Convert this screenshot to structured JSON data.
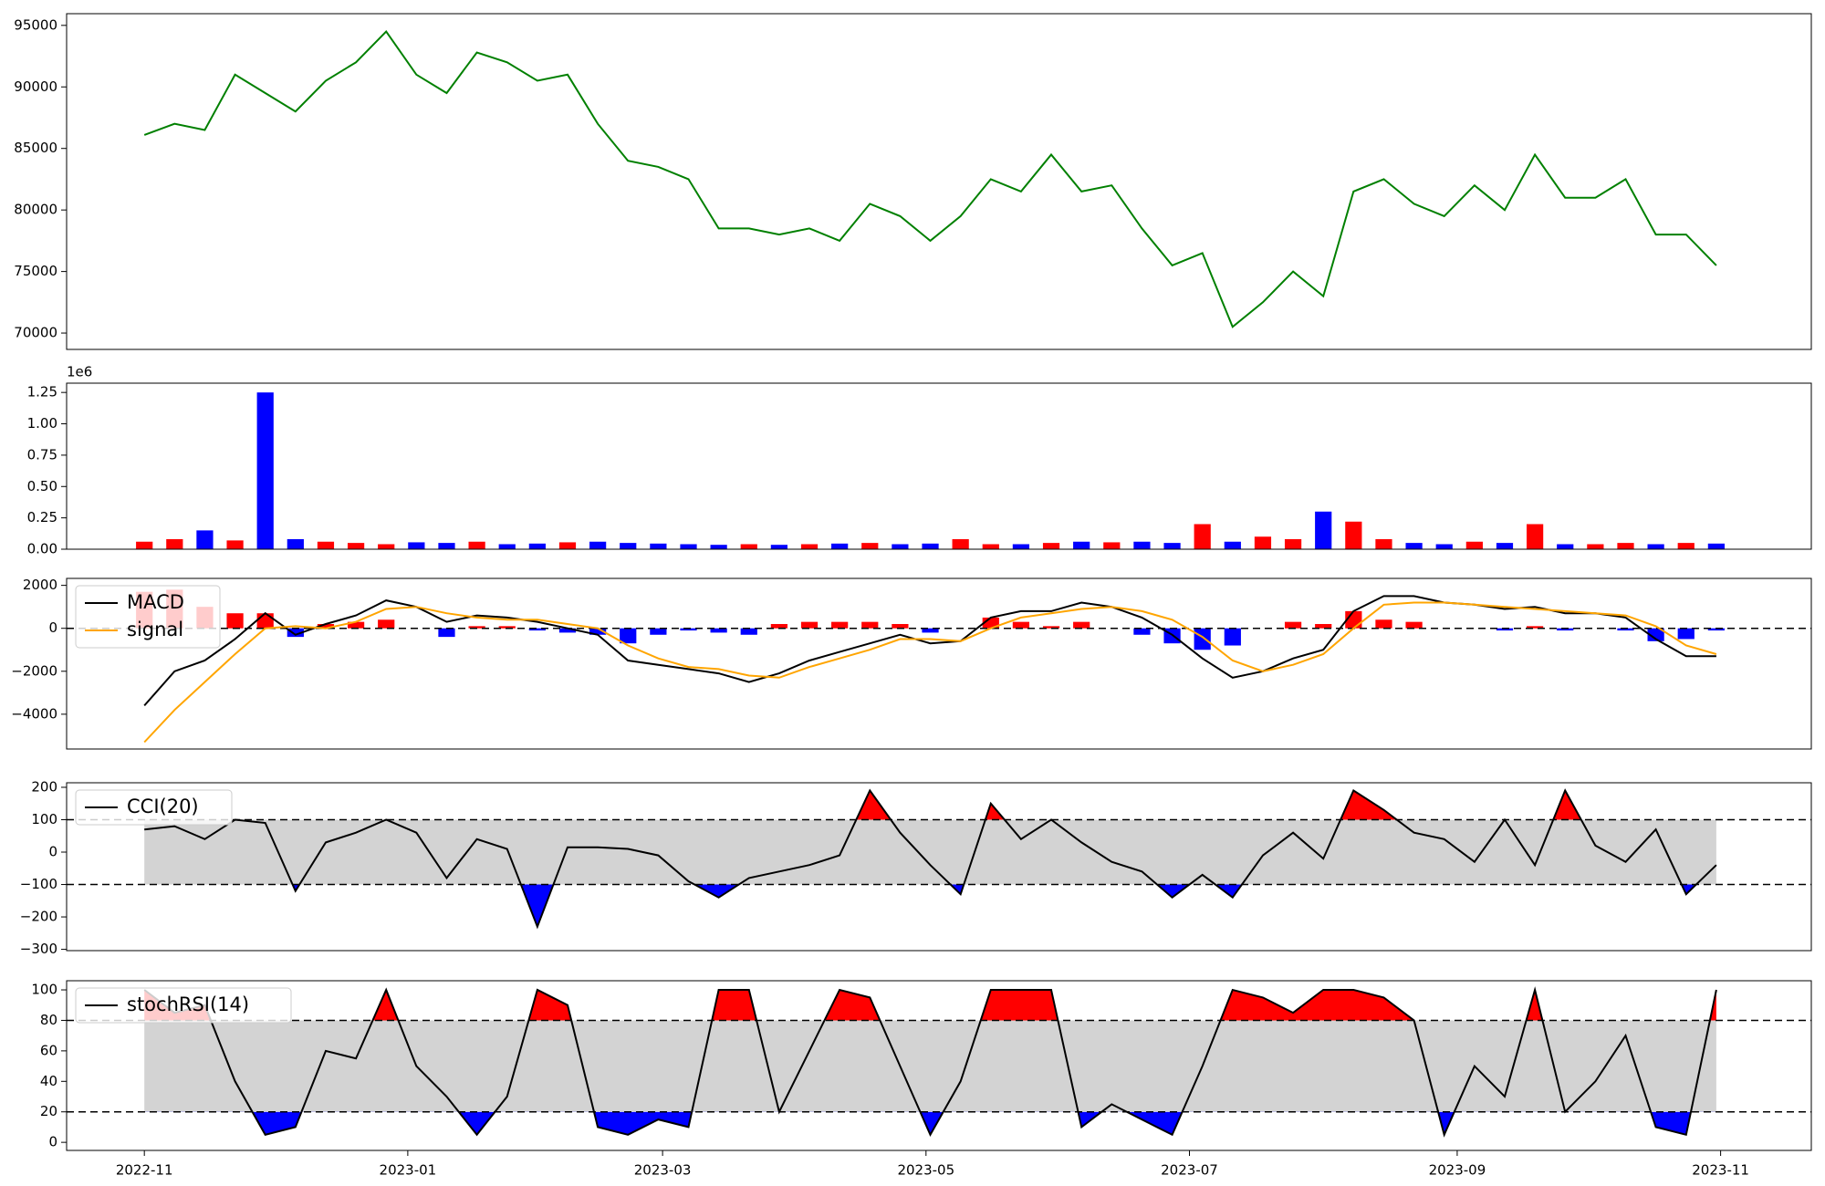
{
  "chart_data": [
    {
      "type": "line",
      "x": [
        "2022-11-01",
        "2022-11-08",
        "2022-11-15",
        "2022-11-22",
        "2022-11-29",
        "2022-12-06",
        "2022-12-13",
        "2022-12-20",
        "2022-12-27",
        "2023-01-03",
        "2023-01-10",
        "2023-01-17",
        "2023-01-24",
        "2023-01-31",
        "2023-02-07",
        "2023-02-14",
        "2023-02-21",
        "2023-02-28",
        "2023-03-07",
        "2023-03-14",
        "2023-03-21",
        "2023-03-28",
        "2023-04-04",
        "2023-04-11",
        "2023-04-18",
        "2023-04-25",
        "2023-05-02",
        "2023-05-09",
        "2023-05-16",
        "2023-05-23",
        "2023-05-30",
        "2023-06-06",
        "2023-06-13",
        "2023-06-20",
        "2023-06-27",
        "2023-07-04",
        "2023-07-11",
        "2023-07-18",
        "2023-07-25",
        "2023-08-01",
        "2023-08-08",
        "2023-08-15",
        "2023-08-22",
        "2023-08-29",
        "2023-09-05",
        "2023-09-12",
        "2023-09-19",
        "2023-09-26",
        "2023-10-03",
        "2023-10-10",
        "2023-10-17",
        "2023-10-24",
        "2023-10-31"
      ],
      "xlim": [
        "2022-10-14",
        "2023-11-22"
      ],
      "xticks": [
        {
          "value": "2022-11-01",
          "label": "2022-11"
        },
        {
          "value": "2023-01-01",
          "label": "2023-01"
        },
        {
          "value": "2023-03-01",
          "label": "2023-03"
        },
        {
          "value": "2023-05-01",
          "label": "2023-05"
        },
        {
          "value": "2023-07-01",
          "label": "2023-07"
        },
        {
          "value": "2023-09-01",
          "label": "2023-09"
        },
        {
          "value": "2023-11-01",
          "label": "2023-11"
        }
      ],
      "color": "green",
      "values": [
        86100,
        87000,
        86500,
        91000,
        89500,
        88000,
        90500,
        92000,
        94500,
        91000,
        89500,
        92800,
        92000,
        90500,
        91000,
        87000,
        84000,
        83500,
        82500,
        78500,
        78500,
        78000,
        78500,
        77500,
        80500,
        79500,
        77500,
        79500,
        82500,
        81500,
        84500,
        81500,
        82000,
        78500,
        75500,
        76500,
        70500,
        72500,
        75000,
        73000,
        81500,
        82500,
        80500,
        79500,
        82000,
        80000,
        84500,
        81000,
        81000,
        82500,
        78000,
        78000,
        75500
      ],
      "ylim": [
        68670,
        95950
      ],
      "yticks": [
        70000,
        75000,
        80000,
        85000,
        90000,
        95000
      ]
    },
    {
      "type": "bar",
      "values": [
        60000,
        80000,
        150000,
        70000,
        1250000,
        80000,
        60000,
        50000,
        40000,
        55000,
        50000,
        60000,
        40000,
        45000,
        55000,
        60000,
        50000,
        45000,
        40000,
        35000,
        40000,
        35000,
        40000,
        45000,
        50000,
        40000,
        45000,
        80000,
        40000,
        40000,
        50000,
        60000,
        55000,
        60000,
        50000,
        200000,
        60000,
        100000,
        80000,
        300000,
        220000,
        80000,
        50000,
        40000,
        60000,
        50000,
        200000,
        40000,
        40000,
        50000,
        40000,
        50000,
        45000
      ],
      "up_color": "red",
      "down_color": "blue",
      "offset_label": "1e6",
      "ylim": [
        0,
        1324000
      ],
      "yticks": [
        {
          "value": 0,
          "label": "0.00"
        },
        {
          "value": 250000,
          "label": "0.25"
        },
        {
          "value": 500000,
          "label": "0.50"
        },
        {
          "value": 750000,
          "label": "0.75"
        },
        {
          "value": 1000000,
          "label": "1.00"
        },
        {
          "value": 1250000,
          "label": "1.25"
        }
      ]
    },
    {
      "type": "macd",
      "series": [
        {
          "name": "MACD",
          "color": "black",
          "values": [
            -3600,
            -2000,
            -1500,
            -500,
            700,
            -300,
            200,
            600,
            1300,
            1000,
            300,
            600,
            500,
            300,
            0,
            -300,
            -1500,
            -1700,
            -1900,
            -2100,
            -2500,
            -2100,
            -1500,
            -1100,
            -700,
            -300,
            -700,
            -600,
            500,
            800,
            800,
            1200,
            1000,
            500,
            -300,
            -1400,
            -2300,
            -2000,
            -1400,
            -1000,
            800,
            1500,
            1500,
            1200,
            1100,
            900,
            1000,
            700,
            700,
            500,
            -500,
            -1300,
            -1300
          ]
        },
        {
          "name": "signal",
          "color": "orange",
          "values": [
            -5300,
            -3800,
            -2500,
            -1200,
            0,
            100,
            0,
            300,
            900,
            1000,
            700,
            500,
            400,
            400,
            200,
            0,
            -800,
            -1400,
            -1800,
            -1900,
            -2200,
            -2300,
            -1800,
            -1400,
            -1000,
            -500,
            -500,
            -600,
            0,
            500,
            700,
            900,
            1000,
            800,
            400,
            -400,
            -1500,
            -2000,
            -1700,
            -1200,
            0,
            1100,
            1200,
            1200,
            1100,
            1000,
            900,
            800,
            700,
            600,
            100,
            -800,
            -1200
          ]
        }
      ],
      "histogram": [
        1700,
        1800,
        1000,
        700,
        700,
        -400,
        200,
        300,
        400,
        0,
        -400,
        100,
        100,
        -100,
        -200,
        -300,
        -700,
        -300,
        -100,
        -200,
        -300,
        200,
        300,
        300,
        300,
        200,
        -200,
        0,
        500,
        300,
        100,
        300,
        0,
        -300,
        -700,
        -1000,
        -800,
        0,
        300,
        200,
        800,
        400,
        300,
        0,
        0,
        -100,
        100,
        -100,
        0,
        -100,
        -600,
        -500,
        -100
      ],
      "up_color": "red",
      "down_color": "blue",
      "hline": 0,
      "ylim": [
        -5620,
        2324
      ],
      "yticks": [
        {
          "value": -4000,
          "label": "−4000"
        },
        {
          "value": -2000,
          "label": "−2000"
        },
        0,
        2000
      ]
    },
    {
      "type": "band",
      "series": [
        {
          "name": "CCI(20)",
          "color": "black",
          "values": [
            70,
            80,
            40,
            100,
            90,
            -120,
            30,
            60,
            100,
            60,
            -80,
            40,
            10,
            -230,
            15,
            15,
            10,
            -10,
            -90,
            -140,
            -80,
            -60,
            -40,
            -10,
            190,
            60,
            -40,
            -130,
            150,
            40,
            100,
            30,
            -30,
            -60,
            -140,
            -70,
            -140,
            -10,
            60,
            -20,
            190,
            130,
            60,
            40,
            -30,
            100,
            -40,
            190,
            20,
            -30,
            70,
            -130,
            -40
          ]
        }
      ],
      "upper": 100,
      "lower": -100,
      "band_color": "lightgray",
      "above_color": "red",
      "below_color": "blue",
      "ylim": [
        -304,
        214
      ],
      "yticks": [
        {
          "value": -300,
          "label": "−300"
        },
        {
          "value": -200,
          "label": "−200"
        },
        {
          "value": -100,
          "label": "−100"
        },
        0,
        100,
        200
      ]
    },
    {
      "type": "band",
      "series": [
        {
          "name": "stochRSI(14)",
          "color": "black",
          "values": [
            100,
            85,
            90,
            40,
            5,
            10,
            60,
            55,
            100,
            50,
            30,
            5,
            30,
            100,
            90,
            10,
            5,
            15,
            10,
            100,
            100,
            20,
            60,
            100,
            95,
            50,
            5,
            40,
            100,
            100,
            100,
            10,
            25,
            15,
            5,
            50,
            100,
            95,
            85,
            100,
            100,
            95,
            80,
            5,
            50,
            30,
            100,
            20,
            40,
            70,
            10,
            5,
            100
          ]
        }
      ],
      "upper": 80,
      "lower": 20,
      "band_color": "lightgray",
      "above_color": "red",
      "below_color": "blue",
      "ylim": [
        -5.3,
        106
      ],
      "yticks": [
        0,
        20,
        40,
        60,
        80,
        100
      ]
    }
  ]
}
